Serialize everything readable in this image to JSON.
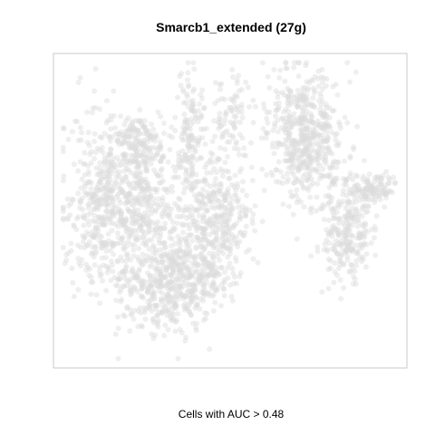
{
  "chart_data": {
    "type": "scatter",
    "title": "Smarcb1_extended (27g)",
    "xlabel": "Cells with AUC > 0.48",
    "ylabel": "",
    "axes_visible": false,
    "grid": false,
    "legend": "none",
    "point_color": "#dcdcdc",
    "point_opacity": 0.45,
    "highlighted_points": 0,
    "clusters": [
      {
        "name": "",
        "cx": 0.72,
        "cy": 0.25,
        "sx": 0.055,
        "sy": 0.105,
        "n": 540
      },
      {
        "name": "",
        "cx": 0.38,
        "cy": 0.23,
        "sx": 0.02,
        "sy": 0.11,
        "n": 120
      },
      {
        "name": "",
        "cx": 0.13,
        "cy": 0.47,
        "sx": 0.055,
        "sy": 0.14,
        "n": 480
      },
      {
        "name": "",
        "cx": 0.25,
        "cy": 0.46,
        "sx": 0.05,
        "sy": 0.1,
        "n": 280
      },
      {
        "name": "",
        "cx": 0.23,
        "cy": 0.27,
        "sx": 0.035,
        "sy": 0.045,
        "n": 140
      },
      {
        "name": "",
        "cx": 0.45,
        "cy": 0.54,
        "sx": 0.055,
        "sy": 0.13,
        "n": 450
      },
      {
        "name": "",
        "cx": 0.32,
        "cy": 0.74,
        "sx": 0.075,
        "sy": 0.08,
        "n": 520
      },
      {
        "name": "",
        "cx": 0.84,
        "cy": 0.57,
        "sx": 0.035,
        "sy": 0.09,
        "n": 260
      },
      {
        "name": "",
        "cx": 0.92,
        "cy": 0.42,
        "sx": 0.04,
        "sy": 0.025,
        "n": 120
      },
      {
        "name": "",
        "cx": 0.5,
        "cy": 0.18,
        "sx": 0.03,
        "sy": 0.07,
        "n": 80
      }
    ]
  }
}
